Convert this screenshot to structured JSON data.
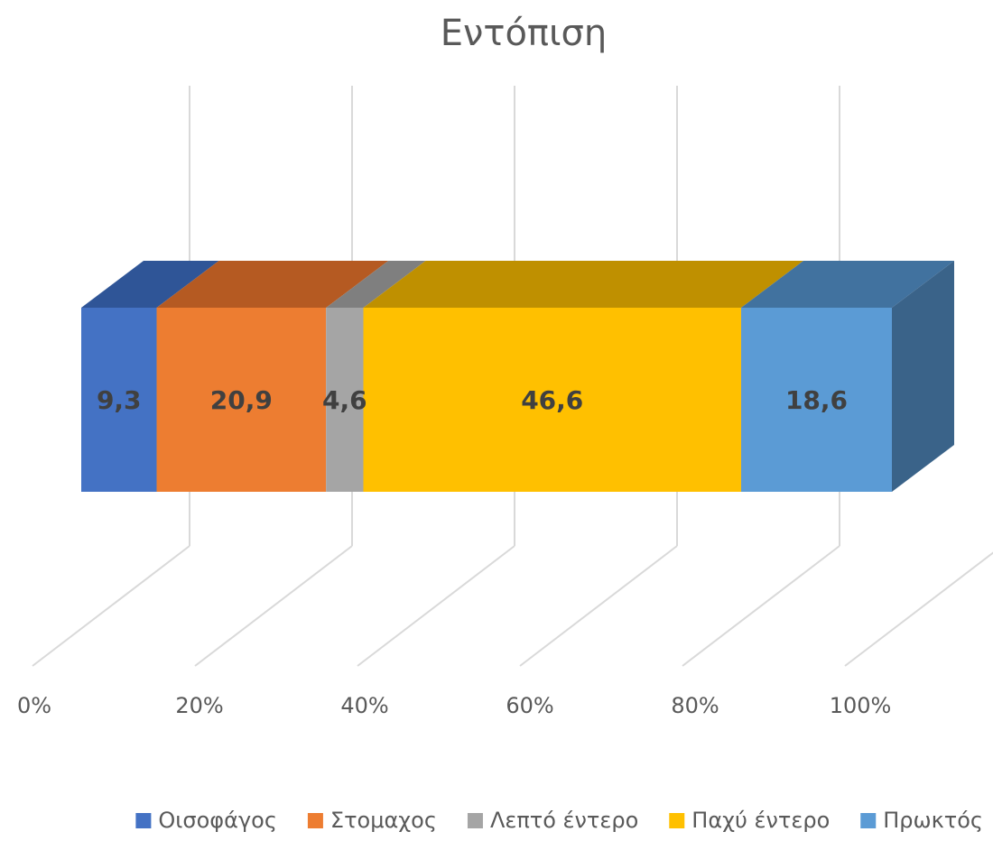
{
  "chart_data": {
    "type": "bar",
    "orientation": "horizontal",
    "stacked": "100%",
    "style": "3d",
    "title": "Εντόπιση",
    "categories": [
      ""
    ],
    "series": [
      {
        "name": "Οισοφάγος",
        "values": [
          9.3
        ],
        "label": "9,3",
        "color": "#4472C4",
        "top_color": "#2F5597",
        "side_color": "#2F5597"
      },
      {
        "name": "Στομαχος",
        "values": [
          20.9
        ],
        "label": "20,9",
        "color": "#ED7D31",
        "top_color": "#B55A22",
        "side_color": "#B55A22"
      },
      {
        "name": "Λεπτό έντερο",
        "values": [
          4.6
        ],
        "label": "4,6",
        "color": "#A5A5A5",
        "top_color": "#7F7F7F",
        "side_color": "#7F7F7F"
      },
      {
        "name": "Παχύ έντερο",
        "values": [
          46.6
        ],
        "label": "46,6",
        "color": "#FFC000",
        "top_color": "#BF9000",
        "side_color": "#BF9000"
      },
      {
        "name": "Πρωκτός",
        "values": [
          18.6
        ],
        "label": "18,6",
        "color": "#5B9BD5",
        "top_color": "#41729F",
        "side_color": "#3A6389"
      }
    ],
    "xaxis": {
      "ticks": [
        "0%",
        "20%",
        "40%",
        "60%",
        "80%",
        "100%"
      ],
      "range": [
        0,
        100
      ]
    },
    "grid": true,
    "gridline_color": "#D9D9D9",
    "legend_position": "bottom"
  }
}
